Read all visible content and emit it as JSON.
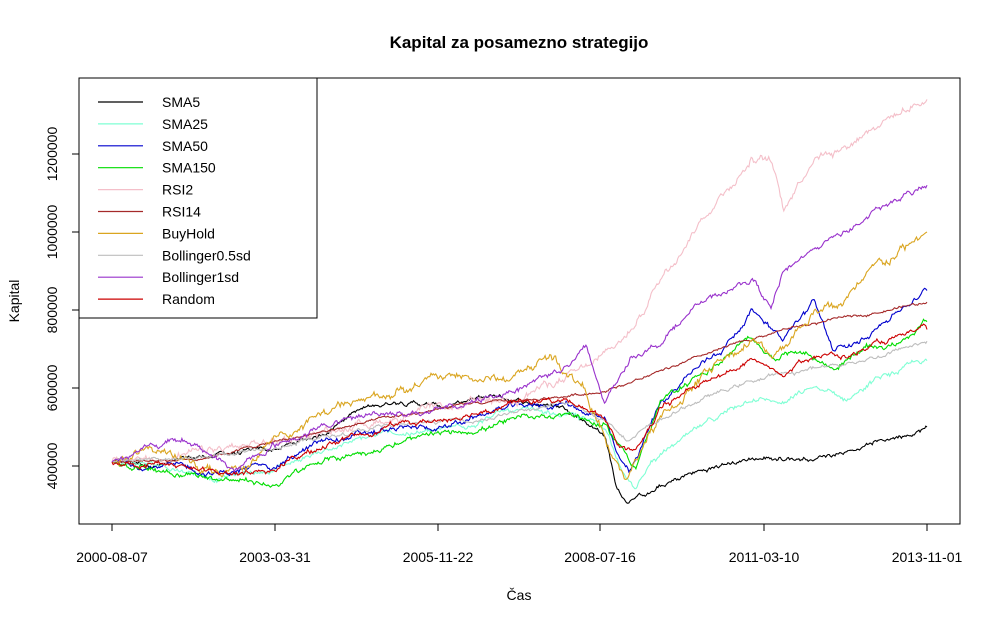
{
  "chart_data": {
    "type": "line",
    "title": "Kapital za posamezno strategijo",
    "xlabel": "Čas",
    "ylabel": "Kapital",
    "x_ticks": [
      "2000-08-07",
      "2003-03-31",
      "2005-11-22",
      "2008-07-16",
      "2011-03-10",
      "2013-11-01"
    ],
    "x_range": [
      "2000-08-07",
      "2013-11-01"
    ],
    "x_tick_years": [
      2000.6,
      3.24,
      5.9,
      8.54,
      11.19,
      13.83
    ],
    "xlim": [
      2000.6,
      2013.83
    ],
    "y_ticks": [
      400000,
      600000,
      800000,
      1000000,
      1200000
    ],
    "y_tick_labels": [
      "400000",
      "600000",
      "800000",
      "1000000",
      "1200000"
    ],
    "ylim": [
      300000,
      1350000
    ],
    "legend_position": "top-left",
    "series": [
      {
        "name": "SMA5",
        "color": "#000000",
        "noise": 7000,
        "x": [
          2000.6,
          2001.5,
          2002.3,
          2003.2,
          2004.0,
          2004.5,
          2005.3,
          2006.0,
          2006.8,
          2007.5,
          2008.0,
          2008.6,
          2008.8,
          2008.95,
          2009.3,
          2010.0,
          2011.0,
          2012.0,
          2013.0,
          2013.83
        ],
        "values": [
          410000,
          405000,
          430000,
          440000,
          480000,
          540000,
          570000,
          550000,
          580000,
          560000,
          550000,
          480000,
          340000,
          310000,
          330000,
          380000,
          420000,
          420000,
          460000,
          500000
        ]
      },
      {
        "name": "SMA25",
        "color": "#7fffd4",
        "noise": 8000,
        "x": [
          2000.6,
          2001.5,
          2002.3,
          2003.2,
          2004.0,
          2005.0,
          2006.0,
          2007.0,
          2008.0,
          2008.6,
          2008.9,
          2009.1,
          2009.4,
          2010.0,
          2011.0,
          2011.5,
          2012.0,
          2012.5,
          2013.0,
          2013.83
        ],
        "values": [
          410000,
          400000,
          370000,
          390000,
          440000,
          480000,
          490000,
          540000,
          530000,
          500000,
          390000,
          340000,
          420000,
          480000,
          580000,
          560000,
          600000,
          570000,
          620000,
          670000
        ]
      },
      {
        "name": "SMA50",
        "color": "#0000cd",
        "noise": 9000,
        "x": [
          2000.6,
          2001.5,
          2002.3,
          2003.2,
          2004.0,
          2005.0,
          2006.0,
          2007.0,
          2008.0,
          2008.6,
          2008.8,
          2009.0,
          2009.5,
          2010.0,
          2010.5,
          2011.0,
          2011.3,
          2011.5,
          2012.0,
          2012.3,
          2012.6,
          2013.0,
          2013.83
        ],
        "values": [
          410000,
          400000,
          380000,
          400000,
          460000,
          490000,
          500000,
          550000,
          560000,
          520000,
          420000,
          380000,
          560000,
          640000,
          700000,
          800000,
          760000,
          730000,
          820000,
          700000,
          700000,
          760000,
          850000
        ]
      },
      {
        "name": "SMA150",
        "color": "#00dd00",
        "noise": 9000,
        "x": [
          2000.6,
          2001.5,
          2002.3,
          2003.2,
          2004.0,
          2005.0,
          2006.0,
          2007.0,
          2008.0,
          2008.6,
          2008.9,
          2009.1,
          2009.5,
          2010.0,
          2010.5,
          2011.0,
          2011.3,
          2011.8,
          2012.3,
          2012.8,
          2013.3,
          2013.83
        ],
        "values": [
          410000,
          390000,
          370000,
          350000,
          410000,
          450000,
          480000,
          510000,
          540000,
          500000,
          440000,
          400000,
          560000,
          620000,
          670000,
          730000,
          680000,
          700000,
          650000,
          700000,
          710000,
          770000
        ]
      },
      {
        "name": "RSI2",
        "color": "#f4bfc9",
        "noise": 12000,
        "x": [
          2000.6,
          2002.0,
          2003.5,
          2005.0,
          2007.0,
          2008.2,
          2008.6,
          2009.0,
          2009.5,
          2010.0,
          2010.5,
          2011.0,
          2011.3,
          2011.5,
          2012.0,
          2012.5,
          2013.0,
          2013.83
        ],
        "values": [
          410000,
          430000,
          470000,
          520000,
          570000,
          640000,
          680000,
          740000,
          880000,
          1000000,
          1100000,
          1190000,
          1180000,
          1060000,
          1200000,
          1220000,
          1280000,
          1340000
        ]
      },
      {
        "name": "RSI14",
        "color": "#a52a2a",
        "noise": 4000,
        "x": [
          2000.6,
          2002.0,
          2003.5,
          2005.0,
          2006.5,
          2007.5,
          2008.5,
          2009.5,
          2010.5,
          2011.5,
          2012.5,
          2013.83
        ],
        "values": [
          410000,
          420000,
          470000,
          520000,
          560000,
          570000,
          590000,
          640000,
          700000,
          750000,
          780000,
          820000
        ]
      },
      {
        "name": "BuyHold",
        "color": "#daa520",
        "noise": 14000,
        "x": [
          2000.6,
          2001.0,
          2001.5,
          2002.3,
          2002.8,
          2003.2,
          2004.0,
          2005.0,
          2006.0,
          2007.0,
          2007.7,
          2008.3,
          2008.7,
          2008.95,
          2009.3,
          2010.0,
          2010.5,
          2011.0,
          2011.3,
          2012.0,
          2012.5,
          2013.0,
          2013.83
        ],
        "values": [
          410000,
          440000,
          430000,
          380000,
          400000,
          470000,
          530000,
          580000,
          630000,
          620000,
          680000,
          600000,
          420000,
          360000,
          480000,
          600000,
          680000,
          720000,
          680000,
          800000,
          820000,
          900000,
          1000000
        ]
      },
      {
        "name": "Bollinger0.5sd",
        "color": "#bebebe",
        "noise": 6000,
        "x": [
          2000.6,
          2002.0,
          2003.5,
          2005.0,
          2006.5,
          2008.0,
          2008.6,
          2009.0,
          2010.0,
          2011.0,
          2012.0,
          2013.0,
          2013.83
        ],
        "values": [
          410000,
          420000,
          460000,
          500000,
          520000,
          560000,
          520000,
          470000,
          560000,
          620000,
          650000,
          680000,
          720000
        ]
      },
      {
        "name": "Bollinger1sd",
        "color": "#9932cc",
        "noise": 9000,
        "x": [
          2000.6,
          2001.5,
          2001.8,
          2002.3,
          2002.6,
          2003.2,
          2004.0,
          2005.0,
          2006.0,
          2007.0,
          2008.0,
          2008.3,
          2008.6,
          2009.0,
          2009.5,
          2010.0,
          2011.0,
          2011.3,
          2011.5,
          2012.0,
          2012.5,
          2013.0,
          2013.83
        ],
        "values": [
          410000,
          460000,
          470000,
          420000,
          390000,
          450000,
          500000,
          540000,
          540000,
          590000,
          660000,
          700000,
          560000,
          680000,
          720000,
          800000,
          880000,
          800000,
          900000,
          960000,
          1000000,
          1050000,
          1120000
        ]
      },
      {
        "name": "Random",
        "color": "#cc0000",
        "noise": 8000,
        "x": [
          2000.6,
          2001.5,
          2002.3,
          2003.2,
          2004.0,
          2005.0,
          2006.0,
          2007.0,
          2008.0,
          2008.6,
          2008.8,
          2009.1,
          2009.5,
          2010.0,
          2011.0,
          2011.5,
          2012.0,
          2012.5,
          2013.0,
          2013.83
        ],
        "values": [
          410000,
          405000,
          380000,
          390000,
          450000,
          500000,
          520000,
          560000,
          570000,
          520000,
          460000,
          430000,
          540000,
          600000,
          670000,
          640000,
          690000,
          680000,
          710000,
          750000
        ]
      }
    ]
  }
}
